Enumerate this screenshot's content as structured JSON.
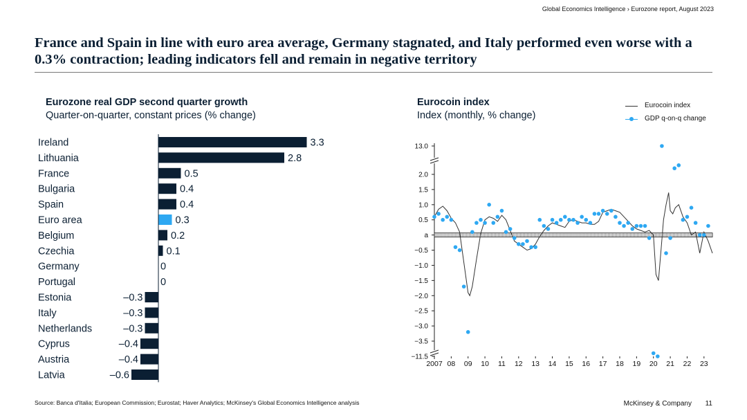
{
  "header": {
    "meta": "Global Economics Intelligence › Eurozone report, August 2023"
  },
  "title": "France and Spain in line with euro area average, Germany stagnated, and Italy performed even worse with a 0.3% contraction; leading indicators fell and remain in negative territory",
  "colors": {
    "navy": "#0b1f33",
    "highlight": "#2ea8f2",
    "line": "#333333"
  },
  "chart_data": [
    {
      "type": "bar",
      "orientation": "horizontal",
      "title": "Eurozone real GDP second quarter growth",
      "subtitle": "Quarter-on-quarter, constant prices (% change)",
      "categories": [
        "Ireland",
        "Lithuania",
        "France",
        "Bulgaria",
        "Spain",
        "Euro area",
        "Belgium",
        "Czechia",
        "Germany",
        "Portugal",
        "Estonia",
        "Italy",
        "Netherlands",
        "Cyprus",
        "Austria",
        "Latvia"
      ],
      "values": [
        3.3,
        2.8,
        0.5,
        0.4,
        0.4,
        0.3,
        0.2,
        0.1,
        0,
        0,
        -0.3,
        -0.3,
        -0.3,
        -0.4,
        -0.4,
        -0.6
      ],
      "value_labels": [
        "3.3",
        "2.8",
        "0.5",
        "0.4",
        "0.4",
        "0.3",
        "0.2",
        "0.1",
        "0",
        "0",
        "–0.3",
        "–0.3",
        "–0.3",
        "–0.4",
        "–0.4",
        "–0.6"
      ],
      "highlight": "Euro area"
    },
    {
      "type": "line",
      "title": "Eurocoin index",
      "subtitle": "Index (monthly, % change)",
      "legend": [
        "Eurocoin index",
        "GDP q-on-q change"
      ],
      "legend_position": "top-right",
      "ylim": [
        -3.5,
        2.0
      ],
      "y_axis_breaks": [
        "13.0",
        "−11.5"
      ],
      "y_ticks": [
        "13.0",
        "2.0",
        "1.5",
        "1.0",
        "0.5",
        "a",
        "−0.5",
        "−1.0",
        "−1.5",
        "−2.0",
        "−2.5",
        "−3.0",
        "−3.5",
        "−11.5"
      ],
      "x_ticks": [
        "2007",
        "08",
        "09",
        "10",
        "11",
        "12",
        "13",
        "14",
        "15",
        "16",
        "17",
        "18",
        "19",
        "20",
        "21",
        "22",
        "23"
      ],
      "series": [
        {
          "name": "Eurocoin index",
          "x": [
            2007.0,
            2007.25,
            2007.5,
            2007.75,
            2008.0,
            2008.25,
            2008.5,
            2008.75,
            2009.0,
            2009.1,
            2009.25,
            2009.5,
            2009.75,
            2010.0,
            2010.25,
            2010.5,
            2010.75,
            2011.0,
            2011.25,
            2011.5,
            2011.75,
            2012.0,
            2012.25,
            2012.5,
            2012.75,
            2013.0,
            2013.25,
            2013.5,
            2013.75,
            2014.0,
            2014.25,
            2014.5,
            2014.75,
            2015.0,
            2015.25,
            2015.5,
            2015.75,
            2016.0,
            2016.25,
            2016.5,
            2016.75,
            2017.0,
            2017.25,
            2017.5,
            2017.75,
            2018.0,
            2018.25,
            2018.5,
            2018.75,
            2019.0,
            2019.25,
            2019.5,
            2019.75,
            2020.0,
            2020.15,
            2020.3,
            2020.45,
            2020.6,
            2020.75,
            2020.9,
            2021.0,
            2021.15,
            2021.3,
            2021.5,
            2021.75,
            2022.0,
            2022.25,
            2022.5,
            2022.75,
            2023.0,
            2023.25,
            2023.5
          ],
          "y": [
            0.6,
            0.85,
            0.95,
            0.8,
            0.55,
            0.4,
            0.1,
            -0.9,
            -1.9,
            -2.0,
            -1.7,
            -0.8,
            0.05,
            0.5,
            0.6,
            0.55,
            0.45,
            0.65,
            0.5,
            0.15,
            -0.2,
            -0.3,
            -0.4,
            -0.5,
            -0.45,
            -0.3,
            -0.05,
            0.15,
            0.3,
            0.4,
            0.35,
            0.3,
            0.25,
            0.45,
            0.5,
            0.45,
            0.4,
            0.4,
            0.35,
            0.35,
            0.45,
            0.75,
            0.8,
            0.85,
            0.8,
            0.75,
            0.6,
            0.45,
            0.3,
            0.2,
            0.15,
            0.1,
            0.15,
            0.0,
            -1.3,
            -1.5,
            -0.5,
            0.5,
            1.0,
            1.4,
            0.8,
            0.7,
            0.9,
            1.0,
            0.6,
            0.4,
            0.0,
            0.1,
            -0.6,
            0.1,
            -0.2,
            -0.6
          ]
        },
        {
          "name": "GDP q-on-q change",
          "x": [
            2007.0,
            2007.25,
            2007.5,
            2007.75,
            2008.0,
            2008.25,
            2008.5,
            2008.75,
            2009.0,
            2009.25,
            2009.5,
            2009.75,
            2010.0,
            2010.25,
            2010.5,
            2010.75,
            2011.0,
            2011.25,
            2011.5,
            2011.75,
            2012.0,
            2012.25,
            2012.5,
            2012.75,
            2013.0,
            2013.25,
            2013.5,
            2013.75,
            2014.0,
            2014.25,
            2014.5,
            2014.75,
            2015.0,
            2015.25,
            2015.5,
            2015.75,
            2016.0,
            2016.25,
            2016.5,
            2016.75,
            2017.0,
            2017.25,
            2017.5,
            2017.75,
            2018.0,
            2018.25,
            2018.5,
            2018.75,
            2019.0,
            2019.25,
            2019.5,
            2019.75,
            2020.0,
            2020.25,
            2020.5,
            2020.75,
            2021.0,
            2021.25,
            2021.5,
            2021.75,
            2022.0,
            2022.25,
            2022.5,
            2022.75,
            2023.0,
            2023.25
          ],
          "y": [
            0.6,
            0.7,
            0.5,
            0.6,
            0.5,
            -0.4,
            -0.5,
            -1.7,
            -3.2,
            0.1,
            0.4,
            0.5,
            0.4,
            1.0,
            0.4,
            0.6,
            0.8,
            0.1,
            0.2,
            -0.1,
            -0.3,
            -0.3,
            -0.2,
            -0.4,
            -0.4,
            0.5,
            0.3,
            0.2,
            0.5,
            0.4,
            0.5,
            0.6,
            0.5,
            0.5,
            0.4,
            0.6,
            0.5,
            0.4,
            0.7,
            0.7,
            0.8,
            0.7,
            0.8,
            0.6,
            0.4,
            0.3,
            0.4,
            0.2,
            0.3,
            0.3,
            0.3,
            -0.1,
            -3.9,
            -11.5,
            13.0,
            -0.6,
            -0.1,
            2.2,
            2.3,
            0.5,
            0.6,
            0.9,
            0.4,
            0.0,
            0.0,
            0.3
          ]
        }
      ]
    }
  ],
  "footer": {
    "source": "Source: Banca d'Italia; European Commission; Eurostat; Haver Analytics; McKinsey's Global Economics Intelligence analysis",
    "brand": "McKinsey & Company",
    "page": "11"
  }
}
